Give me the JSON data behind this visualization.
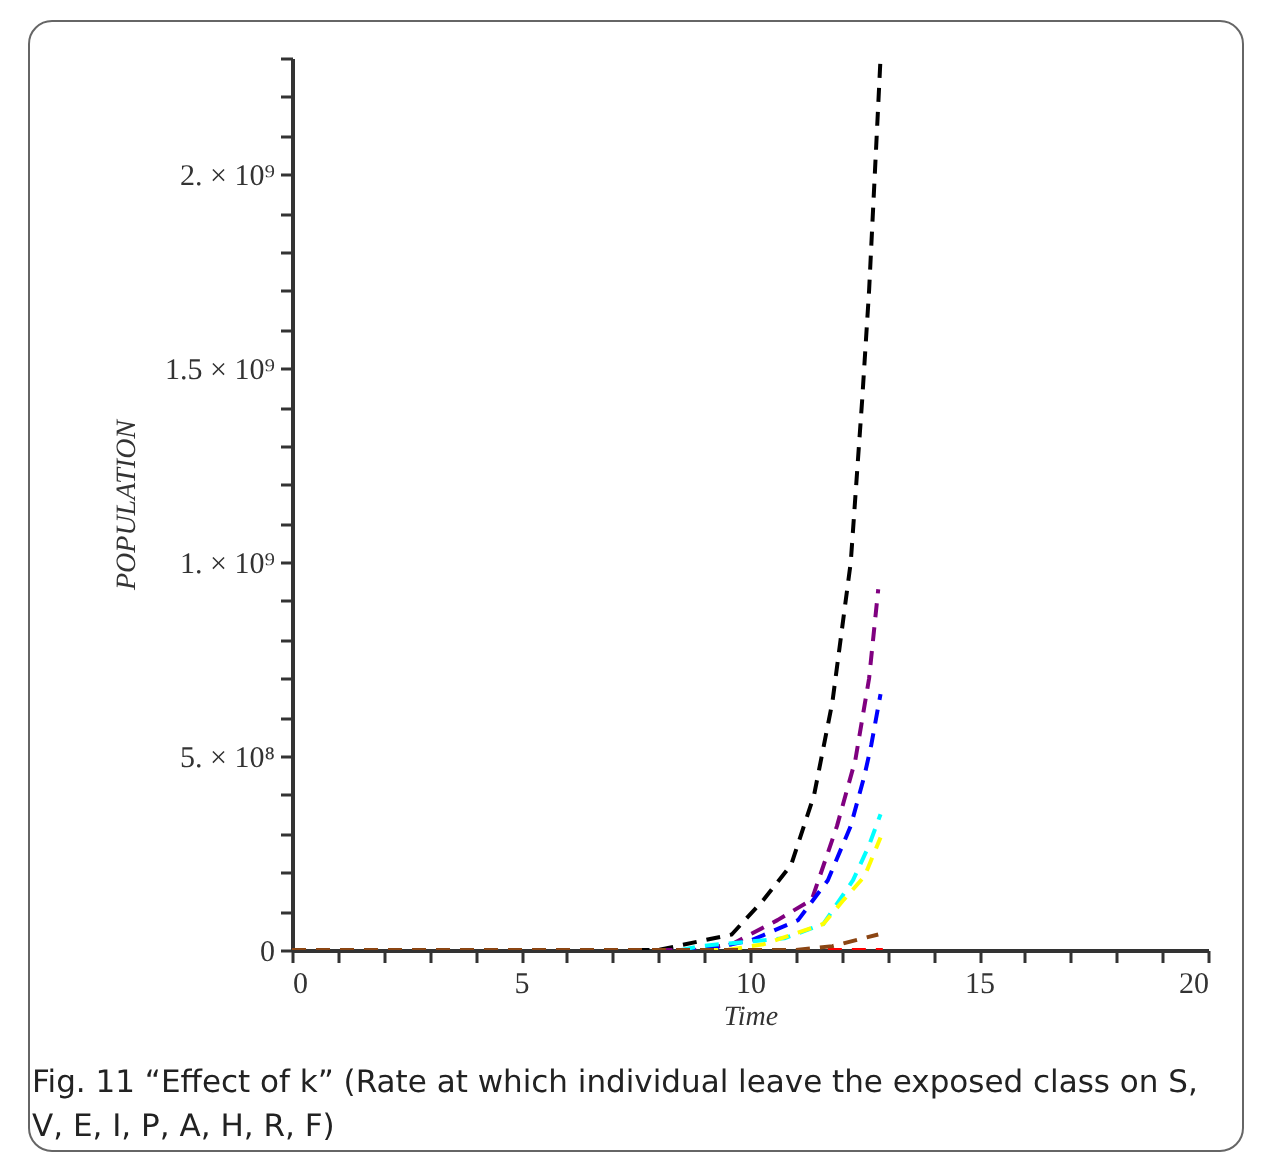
{
  "chart_data": {
    "type": "line",
    "xlabel": "Time",
    "ylabel": "POPULATION",
    "line_style": "dashed",
    "annotations": [
      "Fig. 11  “Effect of k” (Rate at which individual leave the exposed class on S, V, E, I, P, A, H, R, F)"
    ],
    "xlim": [
      0,
      20
    ],
    "ylim": [
      0,
      2300000000
    ],
    "xticks": [
      0,
      {
        "value": 1,
        "label": null
      },
      {
        "value": 2,
        "label": null
      },
      {
        "value": 3,
        "label": null
      },
      {
        "value": 4,
        "label": null
      },
      5,
      {
        "value": 6,
        "label": null
      },
      {
        "value": 7,
        "label": null
      },
      {
        "value": 8,
        "label": null
      },
      {
        "value": 9,
        "label": null
      },
      10,
      {
        "value": 11,
        "label": null
      },
      {
        "value": 12,
        "label": null
      },
      {
        "value": 13,
        "label": null
      },
      {
        "value": 14,
        "label": null
      },
      15,
      {
        "value": 16,
        "label": null
      },
      {
        "value": 17,
        "label": null
      },
      {
        "value": 18,
        "label": null
      },
      {
        "value": 19,
        "label": null
      },
      20
    ],
    "yticks": [
      0,
      {
        "value": 100000000,
        "label": null
      },
      {
        "value": 200000000,
        "label": null
      },
      {
        "value": 300000000,
        "label": null
      },
      {
        "value": 400000000,
        "label": null
      },
      {
        "value": 500000000,
        "label": "5. × 10⁸"
      },
      {
        "value": 600000000,
        "label": null
      },
      {
        "value": 700000000,
        "label": null
      },
      {
        "value": 800000000,
        "label": null
      },
      {
        "value": 900000000,
        "label": null
      },
      {
        "value": 1000000000,
        "label": "1. × 10⁹"
      },
      {
        "value": 1100000000,
        "label": null
      },
      {
        "value": 1200000000,
        "label": null
      },
      {
        "value": 1300000000,
        "label": null
      },
      {
        "value": 1400000000,
        "label": null
      },
      {
        "value": 1500000000,
        "label": "1.5 × 10⁹"
      },
      {
        "value": 1600000000,
        "label": null
      },
      {
        "value": 1700000000,
        "label": null
      },
      {
        "value": 1800000000,
        "label": null
      },
      {
        "value": 1900000000,
        "label": null
      },
      {
        "value": 2000000000,
        "label": "2. × 10⁹"
      },
      {
        "value": 2100000000,
        "label": null
      },
      {
        "value": 2200000000,
        "label": null
      },
      {
        "value": 2300000000,
        "label": null
      }
    ],
    "series": [
      {
        "color": "#000000",
        "x": [
          7.5,
          8,
          9.6,
          10.3,
          10.9,
          11.4,
          11.8,
          12.2,
          12.45,
          12.6,
          12.85
        ],
        "values": [
          0,
          0,
          40000000,
          130000000,
          220000000,
          400000000,
          640000000,
          1000000000,
          1420000000,
          1700000000,
          2300000000
        ]
      },
      {
        "color": "#800080",
        "x": [
          8,
          8.8,
          9.6,
          10.6,
          11.35,
          11.9,
          12.3,
          12.6,
          12.8
        ],
        "values": [
          0,
          0,
          15000000,
          77000000,
          130000000,
          320000000,
          490000000,
          700000000,
          930000000
        ]
      },
      {
        "color": "#0000ff",
        "x": [
          8.5,
          9,
          10.05,
          11.05,
          11.7,
          12.2,
          12.5,
          12.65,
          12.85
        ],
        "values": [
          0,
          0,
          26000000,
          77000000,
          180000000,
          320000000,
          450000000,
          530000000,
          660000000
        ]
      },
      {
        "color": "#00ffff",
        "x": [
          8.5,
          8.9,
          10.75,
          11.6,
          12.25,
          12.6,
          12.85
        ],
        "values": [
          0,
          10000000,
          30000000,
          67000000,
          180000000,
          270000000,
          350000000
        ]
      },
      {
        "color": "#ffff00",
        "x": [
          9,
          9.5,
          10.3,
          11.6,
          12.05,
          12.5,
          12.85
        ],
        "values": [
          0,
          0,
          15000000,
          67000000,
          130000000,
          190000000,
          290000000
        ]
      },
      {
        "color": "#8b4513",
        "x": [
          0,
          11,
          11.8,
          12.8
        ],
        "values": [
          0,
          0,
          10000000,
          40000000
        ]
      },
      {
        "color": "#ff0000",
        "x": [
          11.7,
          12.9
        ],
        "values": [
          0,
          0
        ]
      }
    ]
  }
}
